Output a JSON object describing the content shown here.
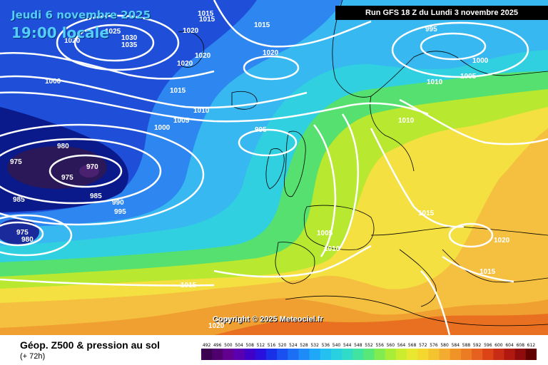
{
  "header": {
    "date": "Jeudi 6 novembre 2025",
    "local_time": "19:00 locale",
    "run": "Run GFS 18 Z du Lundi 3 novembre 2025"
  },
  "footer": {
    "title": "Géop. Z500 & pression au sol",
    "subtitle": "(+ 72h)",
    "copyright": "Copyright © 2025 Meteociel.fr"
  },
  "colors": {
    "ocean_deep": "#0a1a8a",
    "low_core": "#2a1858",
    "cold_blue": "#1f4fd8",
    "mid_blue": "#2e86f0",
    "light_blue": "#38b8f0",
    "cyan": "#30d0e0",
    "green": "#55e070",
    "yellow_green": "#b8e830",
    "yellow": "#f4e040",
    "light_orange": "#f5c040",
    "orange": "#f0a030",
    "dark_orange": "#e87020",
    "isobar": "#ffffff"
  },
  "pressure_labels": [
    "1015",
    "1015",
    "1015",
    "1025",
    "1030",
    "1035",
    "1020",
    "1020",
    "1020",
    "1020",
    "1020",
    "1000",
    "1015",
    "1010",
    "1005",
    "1000",
    "995",
    "980",
    "975",
    "970",
    "975",
    "985",
    "990",
    "995",
    "985",
    "975",
    "980",
    "995",
    "1000",
    "1005",
    "1010",
    "1010",
    "1015",
    "1005",
    "1010",
    "1015",
    "1020",
    "1015",
    "1020",
    "1015"
  ],
  "legend": {
    "values": [
      "492",
      "496",
      "500",
      "504",
      "508",
      "512",
      "516",
      "520",
      "524",
      "528",
      "532",
      "536",
      "540",
      "544",
      "548",
      "552",
      "556",
      "560",
      "564",
      "568",
      "572",
      "576",
      "580",
      "584",
      "588",
      "592",
      "596",
      "600",
      "604",
      "608",
      "612"
    ],
    "colors": [
      "#3c0050",
      "#50006e",
      "#640090",
      "#5a00b0",
      "#4000c8",
      "#2a10dc",
      "#1830e8",
      "#1a50f0",
      "#1c6ef4",
      "#1e8cf8",
      "#20a8f8",
      "#24c0f0",
      "#28d0e0",
      "#30dcc8",
      "#40e4a0",
      "#58e878",
      "#80ec50",
      "#a8ee38",
      "#ccec30",
      "#e8e830",
      "#f4d830",
      "#f4c430",
      "#f4ac30",
      "#f09428",
      "#ec7c24",
      "#e66020",
      "#dc4418",
      "#c82c14",
      "#b01810",
      "#900c0c",
      "#600000"
    ]
  }
}
